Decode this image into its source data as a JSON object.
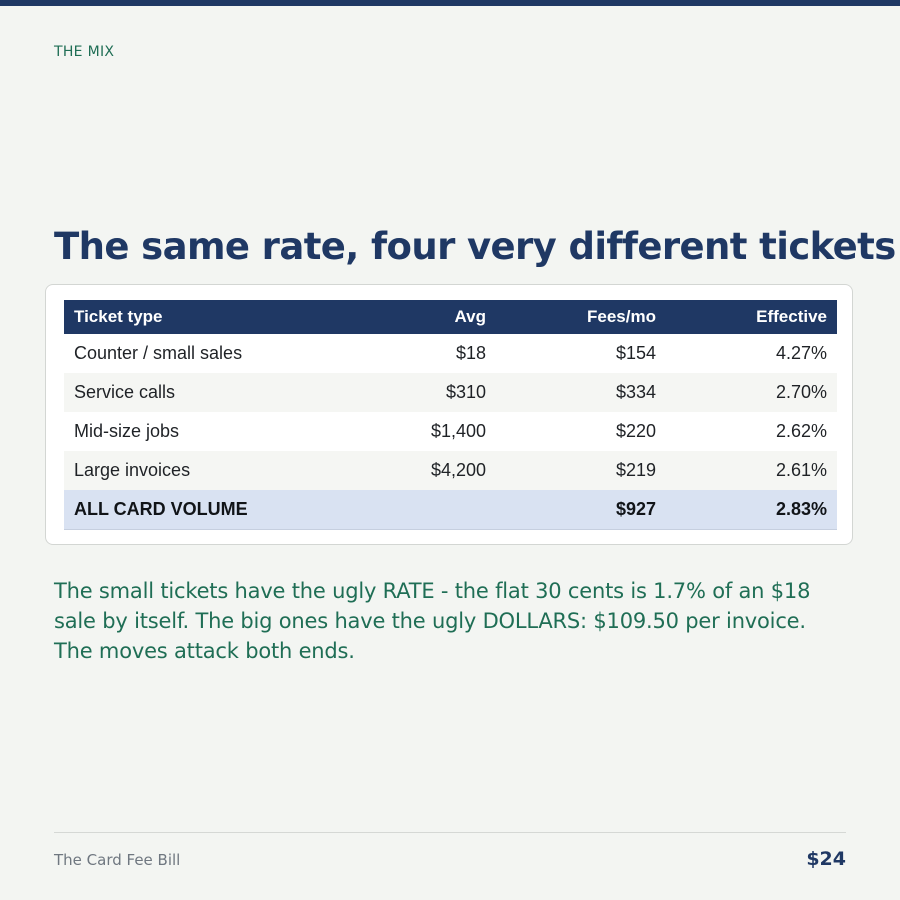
{
  "header": {
    "eyebrow": "THE MIX",
    "title": "The same rate, four very different tickets"
  },
  "table": {
    "columns": [
      "Ticket type",
      "Avg",
      "Fees/mo",
      "Effective"
    ],
    "rows": [
      {
        "type": "Counter / small sales",
        "avg": "$18",
        "fees": "$154",
        "effective": "4.27%"
      },
      {
        "type": "Service calls",
        "avg": "$310",
        "fees": "$334",
        "effective": "2.70%"
      },
      {
        "type": "Mid-size jobs",
        "avg": "$1,400",
        "fees": "$220",
        "effective": "2.62%"
      },
      {
        "type": "Large invoices",
        "avg": "$4,200",
        "fees": "$219",
        "effective": "2.61%"
      }
    ],
    "total": {
      "type": "ALL CARD VOLUME",
      "avg": "",
      "fees": "$927",
      "effective": "2.83%"
    }
  },
  "body": {
    "text": "The small tickets have the ugly RATE - the flat 30 cents is 1.7% of an $18 sale by itself. The big ones have the ugly DOLLARS: $109.50 per invoice. The moves attack both ends."
  },
  "footer": {
    "left": "The Card Fee Bill",
    "right": "$24"
  },
  "colors": {
    "navy": "#1f3864",
    "green": "#1f6e55",
    "background": "#f3f5f2",
    "total_row": "#d9e2f2"
  }
}
